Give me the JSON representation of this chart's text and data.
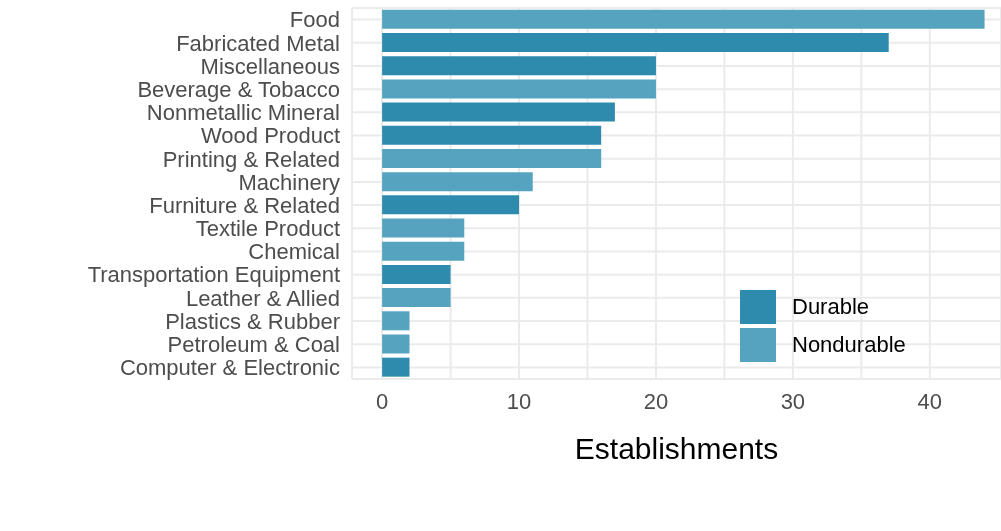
{
  "chart_data": {
    "type": "bar",
    "orientation": "horizontal",
    "stacked": true,
    "xlabel": "Establishments",
    "categories": [
      "Food",
      "Fabricated Metal",
      "Miscellaneous",
      "Beverage & Tobacco",
      "Nonmetallic Mineral",
      "Wood Product",
      "Printing & Related",
      "Machinery",
      "Furniture & Related",
      "Textile Product",
      "Chemical",
      "Transportation Equipment",
      "Leather & Allied",
      "Plastics & Rubber",
      "Petroleum & Coal",
      "Computer & Electronic"
    ],
    "series": [
      {
        "name": "Durable",
        "color": "#2e8bae",
        "values": [
          null,
          37,
          20,
          null,
          17,
          16,
          null,
          null,
          10,
          null,
          null,
          5,
          null,
          null,
          null,
          2
        ]
      },
      {
        "name": "Nondurable",
        "color": "#56a3bf",
        "values": [
          44,
          null,
          null,
          20,
          null,
          null,
          16,
          11,
          null,
          6,
          6,
          null,
          5,
          2,
          2,
          null
        ]
      }
    ],
    "xlim": [
      -2.2,
      45.2
    ],
    "xticks": [
      0,
      {
        "value": 5,
        "label": null
      },
      10,
      {
        "value": 15,
        "label": null
      },
      20,
      {
        "value": 25,
        "label": null
      },
      30,
      {
        "value": 35,
        "label": null
      },
      40
    ],
    "grid": true,
    "legend": "bottom right"
  }
}
